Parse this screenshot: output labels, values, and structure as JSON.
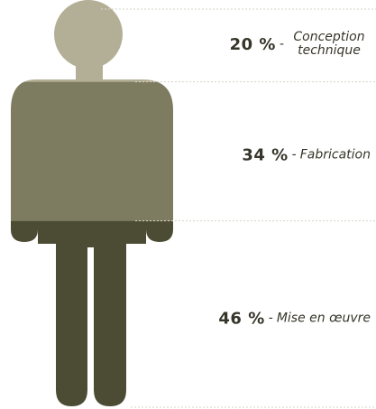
{
  "chart_data": {
    "type": "pictograph",
    "categories": [
      "Conception technique",
      "Fabrication",
      "Mise en œuvre"
    ],
    "values": [
      20,
      34,
      46
    ],
    "value_labels": [
      "20 %",
      "34 %",
      "46 %"
    ],
    "separator": "-",
    "colors": [
      "#b3af96",
      "#7e7c60",
      "#4c4b33"
    ],
    "total": 100
  }
}
